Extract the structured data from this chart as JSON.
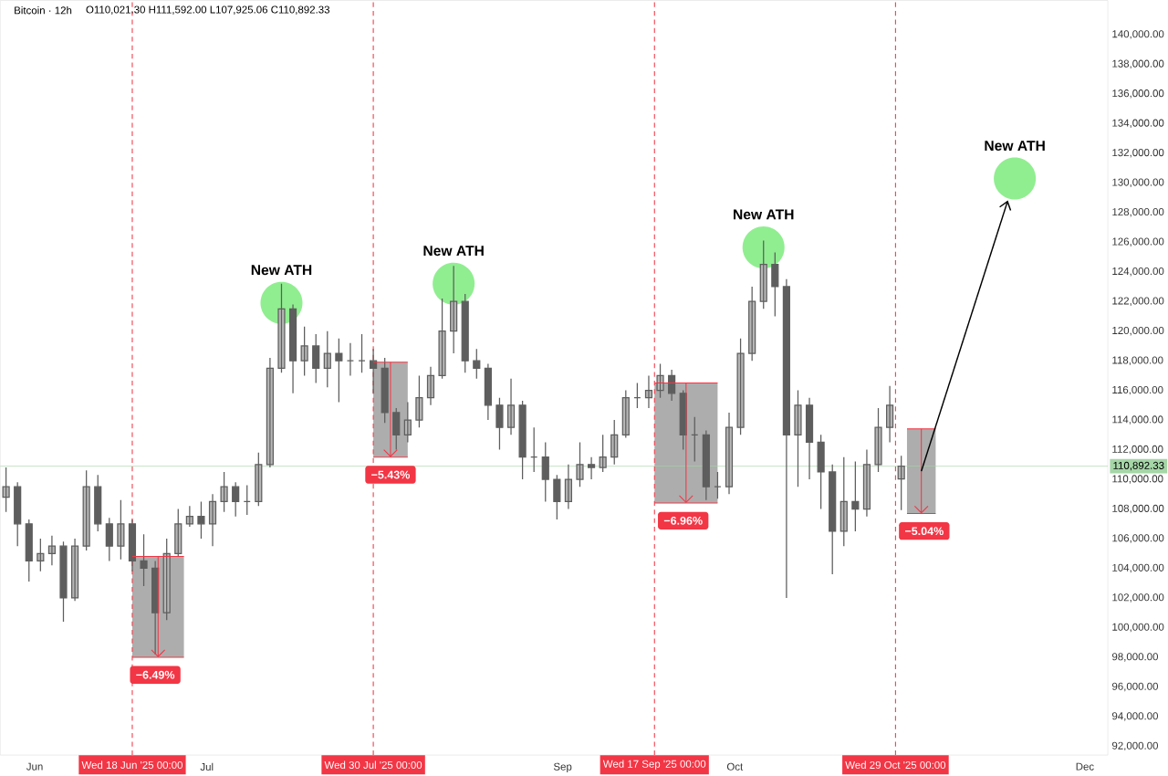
{
  "chart_data": {
    "type": "candlestick",
    "title": "Bitcoin · 12h",
    "subtitle": "O110,021.30 H111,592.00 L107,925.06 C110,892.33",
    "color": "#5e5e5e",
    "x": [
      "2025-05-27",
      "2025-05-29",
      "2025-05-31",
      "2025-06-02",
      "2025-06-04",
      "2025-06-06",
      "2025-06-08",
      "2025-06-10",
      "2025-06-12",
      "2025-06-14",
      "2025-06-16",
      "2025-06-18",
      "2025-06-20",
      "2025-06-22",
      "2025-06-24",
      "2025-06-26",
      "2025-06-28",
      "2025-06-30",
      "2025-07-02",
      "2025-07-04",
      "2025-07-06",
      "2025-07-08",
      "2025-07-10",
      "2025-07-12",
      "2025-07-14",
      "2025-07-16",
      "2025-07-18",
      "2025-07-20",
      "2025-07-22",
      "2025-07-24",
      "2025-07-26",
      "2025-07-28",
      "2025-07-30",
      "2025-08-01",
      "2025-08-03",
      "2025-08-05",
      "2025-08-07",
      "2025-08-09",
      "2025-08-11",
      "2025-08-13",
      "2025-08-15",
      "2025-08-17",
      "2025-08-19",
      "2025-08-21",
      "2025-08-23",
      "2025-08-25",
      "2025-08-27",
      "2025-08-29",
      "2025-08-31",
      "2025-09-02",
      "2025-09-04",
      "2025-09-06",
      "2025-09-08",
      "2025-09-10",
      "2025-09-12",
      "2025-09-14",
      "2025-09-16",
      "2025-09-18",
      "2025-09-20",
      "2025-09-22",
      "2025-09-24",
      "2025-09-26",
      "2025-09-28",
      "2025-09-30",
      "2025-10-02",
      "2025-10-04",
      "2025-10-06",
      "2025-10-08",
      "2025-10-10",
      "2025-10-12",
      "2025-10-14",
      "2025-10-16",
      "2025-10-18",
      "2025-10-20",
      "2025-10-22",
      "2025-10-24",
      "2025-10-26",
      "2025-10-28",
      "2025-10-30"
    ],
    "ohlc": [
      [
        108800,
        110800,
        107800,
        109500
      ],
      [
        109500,
        109800,
        105500,
        107000
      ],
      [
        107000,
        107300,
        103100,
        104500
      ],
      [
        104500,
        106000,
        103800,
        105000
      ],
      [
        105000,
        106200,
        104200,
        105500
      ],
      [
        105500,
        105800,
        100400,
        102000
      ],
      [
        102000,
        106000,
        101800,
        105500
      ],
      [
        105500,
        110600,
        105200,
        109500
      ],
      [
        109500,
        110300,
        106500,
        107000
      ],
      [
        107000,
        107400,
        104500,
        105500
      ],
      [
        105500,
        108600,
        104600,
        107000
      ],
      [
        107000,
        107300,
        103800,
        104500
      ],
      [
        104500,
        106300,
        102800,
        104000
      ],
      [
        104000,
        104500,
        98200,
        101000
      ],
      [
        101000,
        106000,
        100500,
        105000
      ],
      [
        105000,
        108000,
        104800,
        107000
      ],
      [
        107000,
        108200,
        106800,
        107500
      ],
      [
        107500,
        108500,
        106000,
        107000
      ],
      [
        107000,
        109000,
        105500,
        108500
      ],
      [
        108500,
        110500,
        107800,
        109500
      ],
      [
        109500,
        109800,
        107500,
        108500
      ],
      [
        108500,
        109600,
        107600,
        108500
      ],
      [
        108500,
        111800,
        108200,
        111000
      ],
      [
        111000,
        118200,
        110800,
        117500
      ],
      [
        117500,
        123200,
        117200,
        121500
      ],
      [
        121500,
        121800,
        115800,
        118000
      ],
      [
        118000,
        120300,
        117000,
        119000
      ],
      [
        119000,
        119800,
        116500,
        117500
      ],
      [
        117500,
        120000,
        116200,
        118500
      ],
      [
        118500,
        119500,
        115200,
        118000
      ],
      [
        118000,
        119200,
        117000,
        118000
      ],
      [
        118000,
        119800,
        117200,
        118000
      ],
      [
        118000,
        118800,
        115800,
        117500
      ],
      [
        117500,
        118200,
        113800,
        114500
      ],
      [
        114500,
        114800,
        112000,
        113000
      ],
      [
        113000,
        115200,
        112500,
        114000
      ],
      [
        114000,
        117000,
        113500,
        115500
      ],
      [
        115500,
        117600,
        115000,
        117000
      ],
      [
        117000,
        122200,
        116800,
        120000
      ],
      [
        120000,
        124400,
        118500,
        122000
      ],
      [
        122000,
        122500,
        117200,
        118000
      ],
      [
        118000,
        118800,
        116800,
        117500
      ],
      [
        117500,
        117800,
        114000,
        115000
      ],
      [
        115000,
        115500,
        112000,
        113500
      ],
      [
        113500,
        116800,
        113000,
        115000
      ],
      [
        115000,
        115300,
        110000,
        111500
      ],
      [
        111500,
        113500,
        110500,
        111500
      ],
      [
        111500,
        112500,
        108500,
        110000
      ],
      [
        110000,
        110300,
        107300,
        108500
      ],
      [
        108500,
        111000,
        108000,
        110000
      ],
      [
        110000,
        112500,
        109500,
        111000
      ],
      [
        111000,
        111500,
        110000,
        110800
      ],
      [
        110800,
        113000,
        110500,
        111500
      ],
      [
        111500,
        114000,
        111000,
        113000
      ],
      [
        113000,
        116000,
        112800,
        115500
      ],
      [
        115500,
        116500,
        114800,
        115500
      ],
      [
        115500,
        117000,
        114800,
        116000
      ],
      [
        116000,
        117800,
        115500,
        117000
      ],
      [
        117000,
        117400,
        115300,
        115800
      ],
      [
        115800,
        116000,
        112000,
        113000
      ],
      [
        113000,
        114200,
        111200,
        113000
      ],
      [
        113000,
        113300,
        108600,
        109500
      ],
      [
        109500,
        110500,
        108700,
        109500
      ],
      [
        109500,
        114500,
        109000,
        113500
      ],
      [
        113500,
        119500,
        113000,
        118500
      ],
      [
        118500,
        123000,
        118000,
        122000
      ],
      [
        122000,
        126100,
        121500,
        124500
      ],
      [
        124500,
        125300,
        121000,
        123000
      ],
      [
        123000,
        123500,
        102000,
        113000
      ],
      [
        113000,
        116000,
        109500,
        115000
      ],
      [
        115000,
        115500,
        110000,
        112500
      ],
      [
        112500,
        113000,
        108000,
        110500
      ],
      [
        110500,
        111000,
        103600,
        106500
      ],
      [
        106500,
        111500,
        105500,
        108500
      ],
      [
        108500,
        111200,
        106500,
        108000
      ],
      [
        108000,
        112000,
        107500,
        111000
      ],
      [
        111000,
        114800,
        110500,
        113500
      ],
      [
        113500,
        116300,
        112500,
        115000
      ],
      [
        110021.3,
        111592.0,
        107925.06,
        110892.33
      ]
    ],
    "series": [
      {
        "type": "line",
        "color": "#f23645",
        "x": [
          "2025-06-18",
          "2025-06-27"
        ],
        "values": [
          104800,
          104800
        ],
        "lower": [
          98000,
          98000
        ],
        "upper": [
          104800,
          104800
        ]
      },
      {
        "type": "line",
        "color": "#f23645",
        "x": [
          "2025-07-30",
          "2025-08-05"
        ],
        "values": [
          117900,
          117900
        ],
        "lower": [
          111500,
          111500
        ],
        "upper": [
          117900,
          117900
        ]
      },
      {
        "type": "line",
        "color": "#f23645",
        "x": [
          "2025-09-17",
          "2025-09-28"
        ],
        "values": [
          116500,
          116500
        ],
        "lower": [
          108400,
          108400
        ],
        "upper": [
          116500,
          116500
        ]
      },
      {
        "type": "line",
        "color": "#f23645",
        "x": [
          "2025-10-31",
          "2025-11-05"
        ],
        "values": [
          113400,
          113400
        ],
        "lower": [
          107700,
          107700
        ],
        "upper": [
          113400,
          113400
        ]
      }
    ],
    "annotations": [
      {
        "text": "New ATH",
        "x": "2025-07-14",
        "y": 121900
      },
      {
        "text": "New ATH",
        "x": "2025-08-13",
        "y": 123200
      },
      {
        "text": "New ATH",
        "x": "2025-10-06",
        "y": 125650
      },
      "New ATH",
      {
        "text": "−6.49%",
        "x": "2025-06-22",
        "y": 98000
      },
      {
        "text": "−5.43%",
        "x": "2025-08-02",
        "y": 111500
      },
      {
        "text": "−6.96%",
        "x": "2025-09-22",
        "y": 108400
      },
      {
        "text": "−5.04%",
        "x": "2025-11-03",
        "y": 107700
      }
    ],
    "ref_lines": [
      {
        "axis": "x",
        "value": "2025-06-18",
        "label": "Wed 18 Jun '25   00:00",
        "color": "#f23645",
        "line_style": "dashed"
      },
      {
        "axis": "x",
        "value": "2025-07-30",
        "label": "Wed 30 Jul '25   00:00",
        "color": "#f23645",
        "line_style": "dashed"
      },
      {
        "axis": "x",
        "value": "2025-09-17",
        "label": "Wed 17 Sep '25   00:00",
        "color": "#f23645",
        "line_style": "dashed"
      },
      {
        "axis": "x",
        "value": "2025-10-29",
        "label": "Wed 29 Oct '25   00:00",
        "color": "#f23645",
        "line_style": "dashed"
      },
      {
        "axis": "y",
        "value": 110892.33,
        "label": "110,892.33",
        "color": "#a5d6a7",
        "line_style": "solid"
      }
    ],
    "xlim": [
      "2025-05-26",
      "2025-12-05"
    ],
    "xticks": [
      {
        "value": "2025-06-01",
        "label": "Jun"
      },
      {
        "value": "2025-07-01",
        "label": "Jul"
      },
      {
        "value": "2025-09-01",
        "label": "Sep"
      },
      {
        "value": "2025-10-01",
        "label": "Oct"
      },
      {
        "value": "2025-12-01",
        "label": "Dec"
      }
    ],
    "ylim": [
      91400,
      142300
    ],
    "yticks": [
      {
        "value": 92000,
        "label": "92,000.00"
      },
      {
        "value": 94000,
        "label": "94,000.00"
      },
      {
        "value": 96000,
        "label": "96,000.00"
      },
      {
        "value": 98000,
        "label": "98,000.00"
      },
      {
        "value": 100000,
        "label": "100,000.00"
      },
      {
        "value": 102000,
        "label": "102,000.00"
      },
      {
        "value": 104000,
        "label": "104,000.00"
      },
      {
        "value": 106000,
        "label": "106,000.00"
      },
      {
        "value": 108000,
        "label": "108,000.00"
      },
      {
        "value": 110000,
        "label": "110,000.00"
      },
      {
        "value": 112000,
        "label": "112,000.00"
      },
      {
        "value": 114000,
        "label": "114,000.00"
      },
      {
        "value": 116000,
        "label": "116,000.00"
      },
      {
        "value": 118000,
        "label": "118,000.00"
      },
      {
        "value": 120000,
        "label": "120,000.00"
      },
      {
        "value": 122000,
        "label": "122,000.00"
      },
      {
        "value": 124000,
        "label": "124,000.00"
      },
      {
        "value": 126000,
        "label": "126,000.00"
      },
      {
        "value": 128000,
        "label": "128,000.00"
      },
      {
        "value": 130000,
        "label": "130,000.00"
      },
      {
        "value": 132000,
        "label": "132,000.00"
      },
      {
        "value": 134000,
        "label": "134,000.00"
      },
      {
        "value": 136000,
        "label": "136,000.00"
      },
      {
        "value": 138000,
        "label": "138,000.00"
      },
      {
        "value": 140000,
        "label": "140,000.00"
      }
    ]
  }
}
